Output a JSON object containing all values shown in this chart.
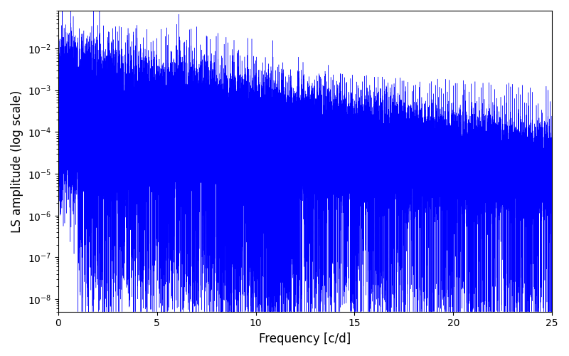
{
  "title": "",
  "xlabel": "Frequency [c/d]",
  "ylabel": "LS amplitude (log scale)",
  "xlim": [
    0,
    25
  ],
  "ylim_low": 5e-09,
  "ylim_high": 0.08,
  "line_color": "#0000FF",
  "linewidth": 0.3,
  "background_color": "#ffffff",
  "freq_max": 25.0,
  "n_points": 50000,
  "seed": 12345,
  "base_amplitude": 0.0002,
  "decay_rate": 0.12,
  "noise_floor_low": 3e-06,
  "noise_floor_high": 8e-07,
  "figsize": [
    8.0,
    5.0
  ],
  "dpi": 100
}
